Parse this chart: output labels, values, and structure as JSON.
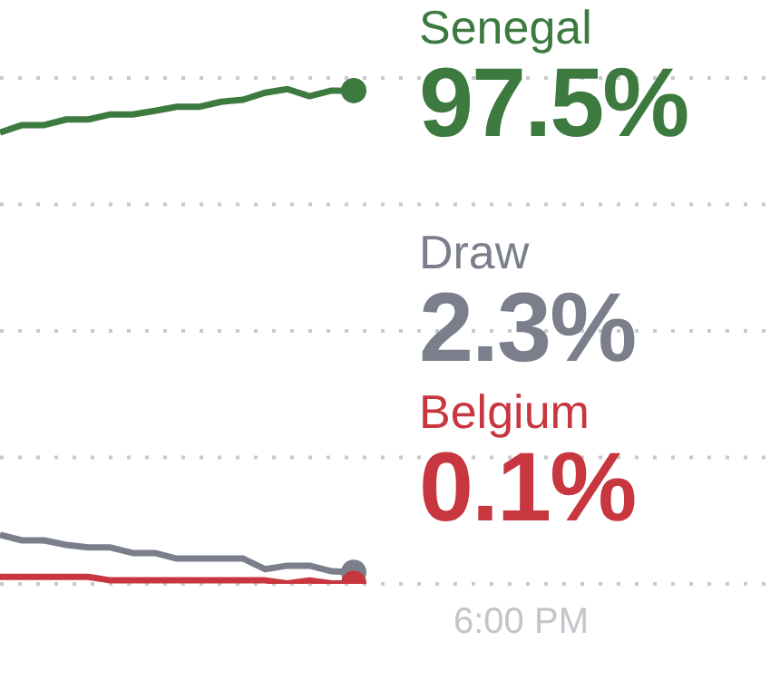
{
  "chart_data": {
    "type": "line",
    "categories": [
      null,
      null,
      null,
      null,
      null,
      null,
      null,
      null,
      null,
      null,
      null,
      null,
      null,
      null,
      null,
      null,
      null
    ],
    "annotations": [
      "6:00 PM"
    ],
    "series": [
      {
        "name": "Senegal",
        "color": "#3d7a3f",
        "values": [
          89.2,
          90.7,
          90.7,
          91.8,
          91.8,
          92.8,
          92.8,
          93.5,
          94.3,
          94.3,
          95.3,
          95.7,
          97.1,
          97.8,
          96.4,
          97.5,
          97.5
        ],
        "value_labels": [
          null,
          null,
          null,
          null,
          null,
          null,
          null,
          null,
          null,
          null,
          null,
          null,
          null,
          null,
          null,
          null,
          "97.5%"
        ]
      },
      {
        "name": "Draw",
        "color": "#7b7f8c",
        "values": [
          9.7,
          8.6,
          8.6,
          7.7,
          7.2,
          7.2,
          6.1,
          6.1,
          5.0,
          5.0,
          5.0,
          5.0,
          2.9,
          3.6,
          3.6,
          2.5,
          2.3
        ],
        "value_labels": [
          null,
          null,
          null,
          null,
          null,
          null,
          null,
          null,
          null,
          null,
          null,
          null,
          null,
          null,
          null,
          null,
          "2.3%"
        ]
      },
      {
        "name": "Belgium",
        "color": "#c8363f",
        "values": [
          1.4,
          1.4,
          1.4,
          1.4,
          1.4,
          0.7,
          0.7,
          0.7,
          0.7,
          0.7,
          0.7,
          0.7,
          0.7,
          0.1,
          0.7,
          0.1,
          0.1
        ],
        "value_labels": [
          null,
          null,
          null,
          null,
          null,
          null,
          null,
          null,
          null,
          null,
          null,
          null,
          null,
          null,
          null,
          null,
          "0.1%"
        ]
      }
    ],
    "ylim": [
      0,
      100
    ],
    "yticks": [
      {
        "value": 0,
        "label": null
      },
      {
        "value": 25,
        "label": null
      },
      {
        "value": 50,
        "label": null
      },
      {
        "value": 75,
        "label": null
      },
      {
        "value": 100,
        "label": null
      }
    ],
    "tick_labels": false,
    "grid": "y",
    "line_style": "solid"
  }
}
